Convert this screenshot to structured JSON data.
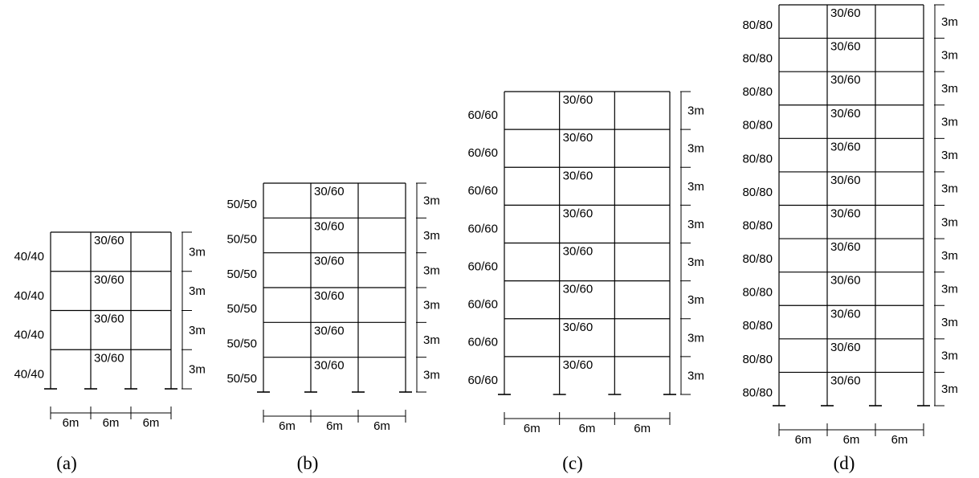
{
  "figure": {
    "frames": [
      {
        "id": "a",
        "caption": "(a)",
        "stories": 4,
        "bays": 3,
        "column_label": "40/40",
        "beam_label": "30/60",
        "story_height_label": "3m",
        "bay_width_label": "6m"
      },
      {
        "id": "b",
        "caption": "(b)",
        "stories": 6,
        "bays": 3,
        "column_label": "50/50",
        "beam_label": "30/60",
        "story_height_label": "3m",
        "bay_width_label": "6m"
      },
      {
        "id": "c",
        "caption": "(c)",
        "stories": 8,
        "bays": 3,
        "column_label": "60/60",
        "beam_label": "30/60",
        "story_height_label": "3m",
        "bay_width_label": "6m"
      },
      {
        "id": "d",
        "caption": "(d)",
        "stories": 12,
        "bays": 3,
        "column_label": "80/80",
        "beam_label": "30/60",
        "story_height_label": "3m",
        "bay_width_label": "6m"
      }
    ]
  }
}
